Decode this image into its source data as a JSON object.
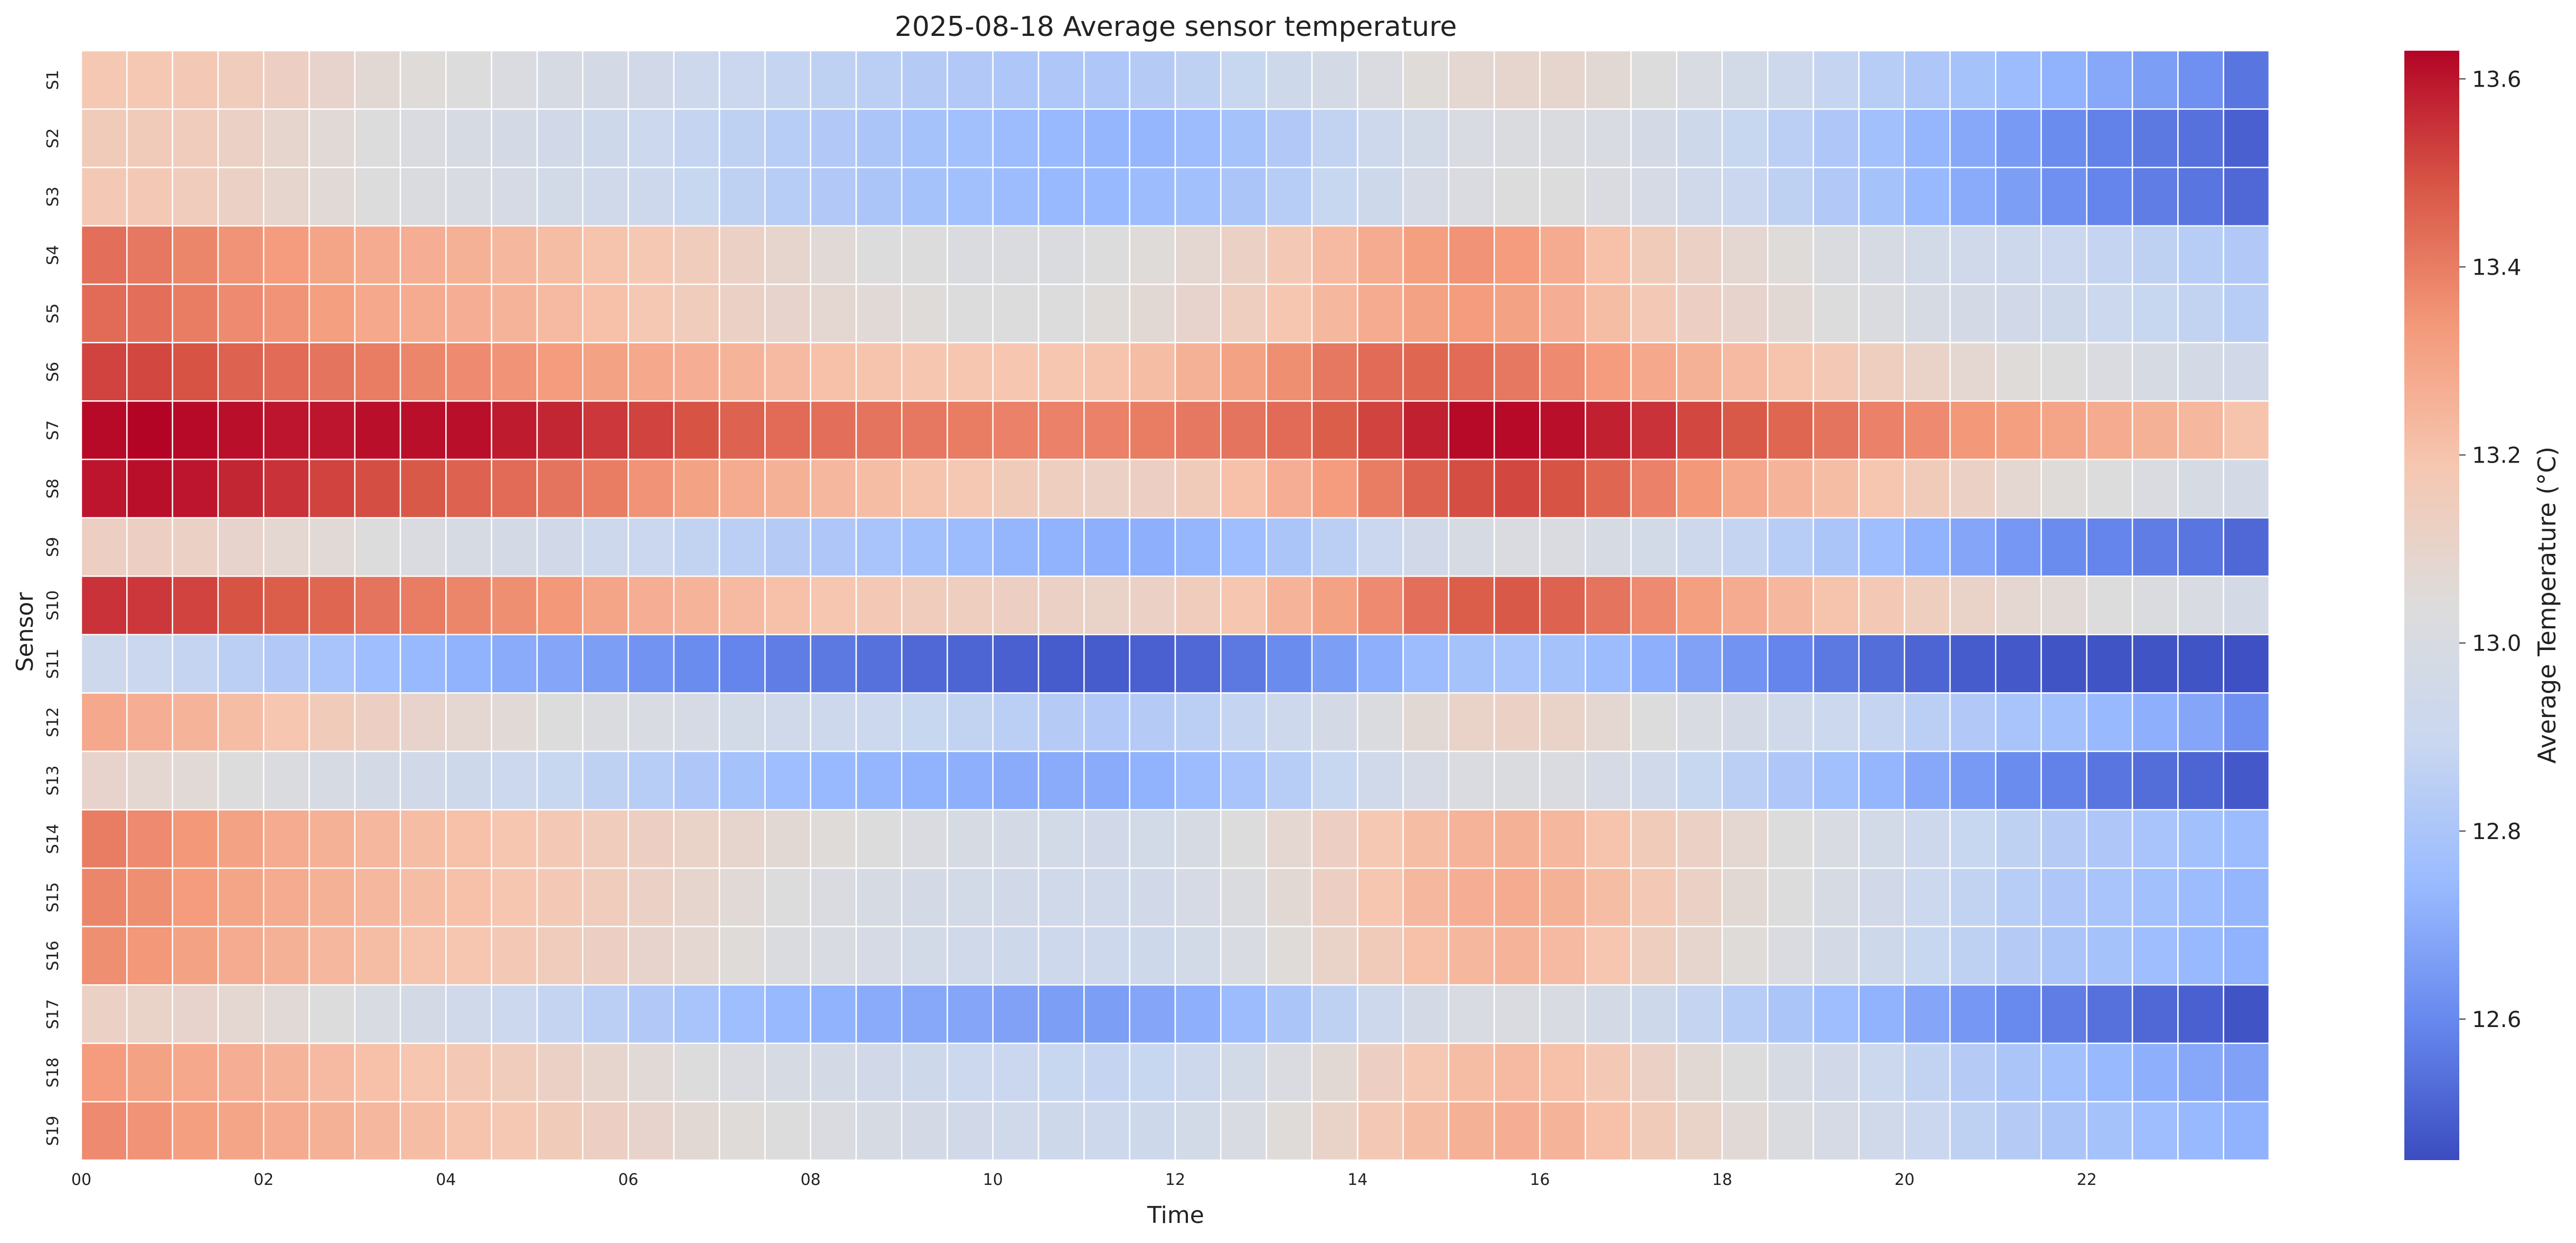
{
  "chart_data": {
    "type": "heatmap",
    "title": "2025-08-18 Average sensor temperature",
    "xlabel": "Time",
    "ylabel": "Sensor",
    "x_tick_labels": [
      "00",
      "02",
      "04",
      "06",
      "08",
      "10",
      "12",
      "14",
      "16",
      "18",
      "20",
      "22"
    ],
    "x_tick_every_n_columns": 4,
    "n_columns": 48,
    "rows": [
      "S1",
      "S2",
      "S3",
      "S4",
      "S5",
      "S6",
      "S7",
      "S8",
      "S9",
      "S10",
      "S11",
      "S12",
      "S13",
      "S14",
      "S15",
      "S16",
      "S17",
      "S18",
      "S19"
    ],
    "colorbar": {
      "label": "Average Temperature (°C)",
      "range": [
        12.45,
        13.63
      ],
      "ticks": [
        "12.6",
        "12.8",
        "13.0",
        "13.2",
        "13.4",
        "13.6"
      ],
      "colormap": "coolwarm",
      "colors": [
        "#3b4cc0",
        "#6788ee",
        "#9abbff",
        "#c9d7f0",
        "#dddcdc",
        "#f6c7b1",
        "#f49a7b",
        "#d95847",
        "#b40426"
      ]
    },
    "grid": false,
    "values": [
      [
        13.18,
        13.18,
        13.17,
        13.15,
        13.13,
        13.1,
        13.07,
        13.05,
        13.03,
        13.01,
        12.99,
        12.97,
        12.95,
        12.92,
        12.9,
        12.88,
        12.86,
        12.85,
        12.83,
        12.82,
        12.81,
        12.81,
        12.81,
        12.83,
        12.86,
        12.89,
        12.93,
        12.97,
        13.01,
        13.05,
        13.08,
        13.09,
        13.09,
        13.07,
        13.04,
        13.0,
        12.96,
        12.92,
        12.88,
        12.84,
        12.81,
        12.78,
        12.75,
        12.72,
        12.69,
        12.66,
        12.62,
        12.55
      ],
      [
        13.16,
        13.16,
        13.15,
        13.12,
        13.09,
        13.06,
        13.03,
        13.01,
        12.99,
        12.97,
        12.95,
        12.93,
        12.91,
        12.88,
        12.86,
        12.84,
        12.82,
        12.8,
        12.78,
        12.77,
        12.75,
        12.74,
        12.73,
        12.73,
        12.75,
        12.78,
        12.82,
        12.87,
        12.92,
        12.96,
        13.0,
        13.02,
        13.02,
        13.0,
        12.97,
        12.93,
        12.89,
        12.85,
        12.81,
        12.77,
        12.73,
        12.69,
        12.65,
        12.61,
        12.58,
        12.56,
        12.54,
        12.5
      ],
      [
        13.17,
        13.17,
        13.15,
        13.12,
        13.09,
        13.06,
        13.04,
        13.02,
        13.0,
        12.98,
        12.96,
        12.94,
        12.92,
        12.89,
        12.86,
        12.84,
        12.82,
        12.8,
        12.78,
        12.77,
        12.75,
        12.74,
        12.74,
        12.75,
        12.77,
        12.8,
        12.84,
        12.89,
        12.93,
        12.98,
        13.01,
        13.03,
        13.03,
        13.01,
        12.98,
        12.94,
        12.9,
        12.86,
        12.82,
        12.78,
        12.74,
        12.7,
        12.66,
        12.62,
        12.59,
        12.57,
        12.55,
        12.52
      ],
      [
        13.43,
        13.41,
        13.38,
        13.35,
        13.33,
        13.3,
        13.28,
        13.27,
        13.26,
        13.24,
        13.22,
        13.2,
        13.18,
        13.15,
        13.12,
        13.09,
        13.06,
        13.04,
        13.03,
        13.02,
        13.02,
        13.02,
        13.03,
        13.05,
        13.08,
        13.12,
        13.17,
        13.23,
        13.28,
        13.32,
        13.35,
        13.33,
        13.28,
        13.21,
        13.16,
        13.12,
        13.08,
        13.05,
        13.02,
        12.99,
        12.96,
        12.94,
        12.92,
        12.9,
        12.88,
        12.86,
        12.84,
        12.82
      ],
      [
        13.44,
        13.43,
        13.4,
        13.37,
        13.35,
        13.32,
        13.29,
        13.28,
        13.27,
        13.25,
        13.23,
        13.21,
        13.18,
        13.15,
        13.12,
        13.1,
        13.08,
        13.06,
        13.05,
        13.04,
        13.04,
        13.04,
        13.05,
        13.07,
        13.1,
        13.14,
        13.19,
        13.24,
        13.28,
        13.31,
        13.33,
        13.31,
        13.27,
        13.22,
        13.17,
        13.13,
        13.1,
        13.07,
        13.04,
        13.02,
        12.99,
        12.97,
        12.95,
        12.93,
        12.91,
        12.89,
        12.87,
        12.84
      ],
      [
        13.52,
        13.51,
        13.49,
        13.46,
        13.44,
        13.42,
        13.4,
        13.38,
        13.37,
        13.35,
        13.33,
        13.31,
        13.29,
        13.27,
        13.25,
        13.23,
        13.21,
        13.2,
        13.19,
        13.19,
        13.19,
        13.19,
        13.2,
        13.22,
        13.26,
        13.31,
        13.36,
        13.41,
        13.44,
        13.45,
        13.44,
        13.41,
        13.37,
        13.33,
        13.29,
        13.26,
        13.23,
        13.2,
        13.17,
        13.14,
        13.11,
        13.08,
        13.05,
        13.03,
        13.01,
        12.99,
        12.97,
        12.95
      ],
      [
        13.62,
        13.63,
        13.62,
        13.61,
        13.6,
        13.6,
        13.61,
        13.61,
        13.61,
        13.59,
        13.57,
        13.54,
        13.52,
        13.49,
        13.46,
        13.44,
        13.43,
        13.42,
        13.41,
        13.4,
        13.39,
        13.39,
        13.39,
        13.4,
        13.41,
        13.42,
        13.44,
        13.47,
        13.52,
        13.58,
        13.62,
        13.62,
        13.61,
        13.58,
        13.55,
        13.51,
        13.48,
        13.45,
        13.42,
        13.39,
        13.37,
        13.34,
        13.32,
        13.3,
        13.28,
        13.26,
        13.24,
        13.2
      ],
      [
        13.6,
        13.61,
        13.6,
        13.57,
        13.55,
        13.52,
        13.5,
        13.48,
        13.46,
        13.44,
        13.42,
        13.4,
        13.35,
        13.31,
        13.28,
        13.26,
        13.24,
        13.22,
        13.2,
        13.18,
        13.16,
        13.14,
        13.12,
        13.13,
        13.16,
        13.21,
        13.27,
        13.33,
        13.4,
        13.46,
        13.5,
        13.51,
        13.49,
        13.45,
        13.39,
        13.34,
        13.29,
        13.25,
        13.22,
        13.19,
        13.16,
        13.12,
        13.08,
        13.05,
        13.03,
        13.01,
        12.99,
        12.97
      ],
      [
        13.13,
        13.13,
        13.12,
        13.1,
        13.08,
        13.06,
        13.03,
        13.01,
        12.99,
        12.97,
        12.95,
        12.92,
        12.9,
        12.87,
        12.85,
        12.83,
        12.81,
        12.79,
        12.77,
        12.75,
        12.73,
        12.72,
        12.71,
        12.71,
        12.73,
        12.76,
        12.8,
        12.85,
        12.9,
        12.95,
        12.99,
        13.01,
        13.01,
        12.99,
        12.96,
        12.92,
        12.88,
        12.84,
        12.8,
        12.76,
        12.72,
        12.68,
        12.64,
        12.61,
        12.59,
        12.57,
        12.55,
        12.52
      ],
      [
        13.55,
        13.54,
        13.52,
        13.49,
        13.47,
        13.45,
        13.42,
        13.4,
        13.38,
        13.36,
        13.34,
        13.3,
        13.27,
        13.25,
        13.23,
        13.21,
        13.19,
        13.17,
        13.15,
        13.14,
        13.13,
        13.12,
        13.11,
        13.12,
        13.15,
        13.19,
        13.25,
        13.31,
        13.37,
        13.43,
        13.47,
        13.48,
        13.46,
        13.42,
        13.37,
        13.32,
        13.28,
        13.24,
        13.2,
        13.17,
        13.14,
        13.11,
        13.08,
        13.06,
        13.04,
        13.02,
        13.0,
        12.97
      ],
      [
        12.92,
        12.9,
        12.88,
        12.85,
        12.82,
        12.79,
        12.76,
        12.74,
        12.72,
        12.7,
        12.68,
        12.66,
        12.63,
        12.61,
        12.59,
        12.57,
        12.56,
        12.54,
        12.52,
        12.51,
        12.5,
        12.49,
        12.49,
        12.5,
        12.52,
        12.56,
        12.61,
        12.66,
        12.71,
        12.75,
        12.78,
        12.79,
        12.78,
        12.75,
        12.71,
        12.67,
        12.63,
        12.59,
        12.56,
        12.53,
        12.51,
        12.49,
        12.48,
        12.47,
        12.47,
        12.47,
        12.47,
        12.46
      ],
      [
        13.29,
        13.27,
        13.25,
        13.22,
        13.19,
        13.16,
        13.13,
        13.1,
        13.08,
        13.06,
        13.04,
        13.02,
        13.0,
        12.98,
        12.96,
        12.94,
        12.92,
        12.91,
        12.89,
        12.87,
        12.85,
        12.83,
        12.82,
        12.83,
        12.85,
        12.88,
        12.92,
        12.97,
        13.02,
        13.07,
        13.11,
        13.12,
        13.11,
        13.08,
        13.04,
        13.0,
        12.97,
        12.94,
        12.91,
        12.88,
        12.85,
        12.82,
        12.79,
        12.77,
        12.74,
        12.71,
        12.68,
        12.62
      ],
      [
        13.1,
        13.08,
        13.06,
        13.04,
        13.02,
        12.99,
        12.97,
        12.95,
        12.93,
        12.91,
        12.89,
        12.86,
        12.84,
        12.81,
        12.78,
        12.76,
        12.74,
        12.73,
        12.72,
        12.71,
        12.7,
        12.7,
        12.7,
        12.72,
        12.75,
        12.79,
        12.84,
        12.89,
        12.94,
        12.98,
        13.01,
        13.02,
        13.01,
        12.98,
        12.94,
        12.89,
        12.85,
        12.81,
        12.77,
        12.73,
        12.69,
        12.65,
        12.61,
        12.58,
        12.55,
        12.53,
        12.51,
        12.48
      ],
      [
        13.4,
        13.37,
        13.34,
        13.31,
        13.28,
        13.26,
        13.24,
        13.22,
        13.21,
        13.19,
        13.17,
        13.15,
        13.13,
        13.11,
        13.09,
        13.07,
        13.05,
        13.03,
        13.01,
        12.99,
        12.97,
        12.96,
        12.95,
        12.96,
        12.99,
        13.03,
        13.08,
        13.13,
        13.18,
        13.22,
        13.25,
        13.26,
        13.24,
        13.2,
        13.16,
        13.12,
        13.08,
        13.04,
        13.0,
        12.96,
        12.92,
        12.89,
        12.86,
        12.83,
        12.81,
        12.79,
        12.77,
        12.75
      ],
      [
        13.38,
        13.36,
        13.33,
        13.3,
        13.28,
        13.26,
        13.24,
        13.22,
        13.21,
        13.19,
        13.17,
        13.15,
        13.12,
        13.09,
        13.06,
        13.03,
        13.01,
        12.99,
        12.97,
        12.96,
        12.95,
        12.94,
        12.94,
        12.95,
        12.98,
        13.02,
        13.07,
        13.13,
        13.19,
        13.24,
        13.27,
        13.28,
        13.26,
        13.22,
        13.17,
        13.12,
        13.07,
        13.03,
        12.99,
        12.95,
        12.91,
        12.87,
        12.84,
        12.81,
        12.79,
        12.77,
        12.75,
        12.73
      ],
      [
        13.36,
        13.34,
        13.31,
        13.28,
        13.26,
        13.24,
        13.22,
        13.2,
        13.19,
        13.17,
        13.15,
        13.13,
        13.1,
        13.08,
        13.05,
        13.02,
        13.0,
        12.98,
        12.96,
        12.94,
        12.93,
        12.92,
        12.92,
        12.93,
        12.96,
        13.0,
        13.05,
        13.11,
        13.16,
        13.21,
        13.24,
        13.25,
        13.23,
        13.19,
        13.14,
        13.09,
        13.05,
        13.01,
        12.97,
        12.93,
        12.89,
        12.86,
        12.83,
        12.8,
        12.78,
        12.76,
        12.74,
        12.72
      ],
      [
        13.12,
        13.11,
        13.1,
        13.08,
        13.06,
        13.03,
        13.0,
        12.97,
        12.94,
        12.91,
        12.88,
        12.85,
        12.82,
        12.79,
        12.76,
        12.74,
        12.72,
        12.7,
        12.69,
        12.68,
        12.67,
        12.66,
        12.66,
        12.68,
        12.71,
        12.75,
        12.8,
        12.86,
        12.92,
        12.97,
        13.0,
        13.01,
        13.0,
        12.97,
        12.93,
        12.88,
        12.84,
        12.8,
        12.76,
        12.72,
        12.68,
        12.64,
        12.6,
        12.57,
        12.54,
        12.52,
        12.5,
        12.47
      ],
      [
        13.33,
        13.31,
        13.29,
        13.27,
        13.25,
        13.23,
        13.21,
        13.19,
        13.17,
        13.15,
        13.12,
        13.09,
        13.06,
        13.03,
        13.01,
        12.99,
        12.97,
        12.95,
        12.93,
        12.91,
        12.9,
        12.89,
        12.88,
        12.89,
        12.92,
        12.96,
        13.01,
        13.07,
        13.13,
        13.18,
        13.22,
        13.23,
        13.21,
        13.17,
        13.12,
        13.07,
        13.03,
        12.99,
        12.95,
        12.91,
        12.87,
        12.83,
        12.8,
        12.77,
        12.74,
        12.71,
        12.69,
        12.67
      ],
      [
        13.37,
        13.35,
        13.32,
        13.3,
        13.28,
        13.26,
        13.24,
        13.22,
        13.2,
        13.18,
        13.16,
        13.13,
        13.1,
        13.07,
        13.05,
        13.03,
        13.01,
        12.99,
        12.97,
        12.95,
        12.94,
        12.93,
        12.92,
        12.93,
        12.96,
        13.0,
        13.05,
        13.11,
        13.17,
        13.22,
        13.26,
        13.27,
        13.25,
        13.21,
        13.16,
        13.11,
        13.06,
        13.02,
        12.98,
        12.94,
        12.9,
        12.86,
        12.83,
        12.8,
        12.78,
        12.76,
        12.74,
        12.72
      ]
    ]
  }
}
